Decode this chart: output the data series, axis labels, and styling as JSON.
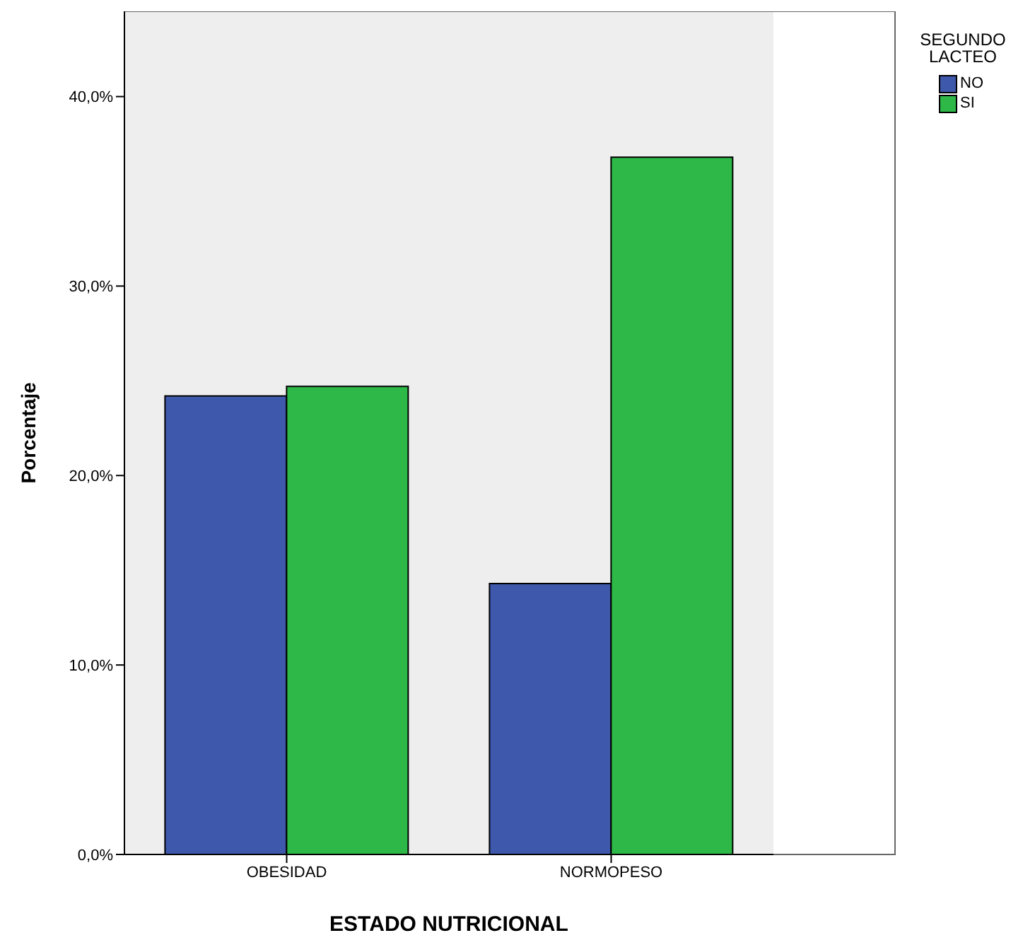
{
  "chart_data": {
    "type": "bar",
    "xlabel": "ESTADO NUTRICIONAL",
    "ylabel": "Porcentaje",
    "legend_title": "SEGUNDO LACTEO",
    "categories": [
      "OBESIDAD",
      "NORMOPESO"
    ],
    "series": [
      {
        "name": "NO",
        "color": "#3e58ac",
        "values": [
          24.2,
          14.3
        ]
      },
      {
        "name": "SI",
        "color": "#2eb848",
        "values": [
          24.7,
          36.8
        ]
      }
    ],
    "ylim": [
      0,
      44.5
    ],
    "yticks": [
      {
        "value": 0,
        "label": "0,0%"
      },
      {
        "value": 10,
        "label": "10,0%"
      },
      {
        "value": 20,
        "label": "20,0%"
      },
      {
        "value": 30,
        "label": "30,0%"
      },
      {
        "value": 40,
        "label": "40,0%"
      }
    ],
    "grid": false,
    "legend": "top right"
  }
}
